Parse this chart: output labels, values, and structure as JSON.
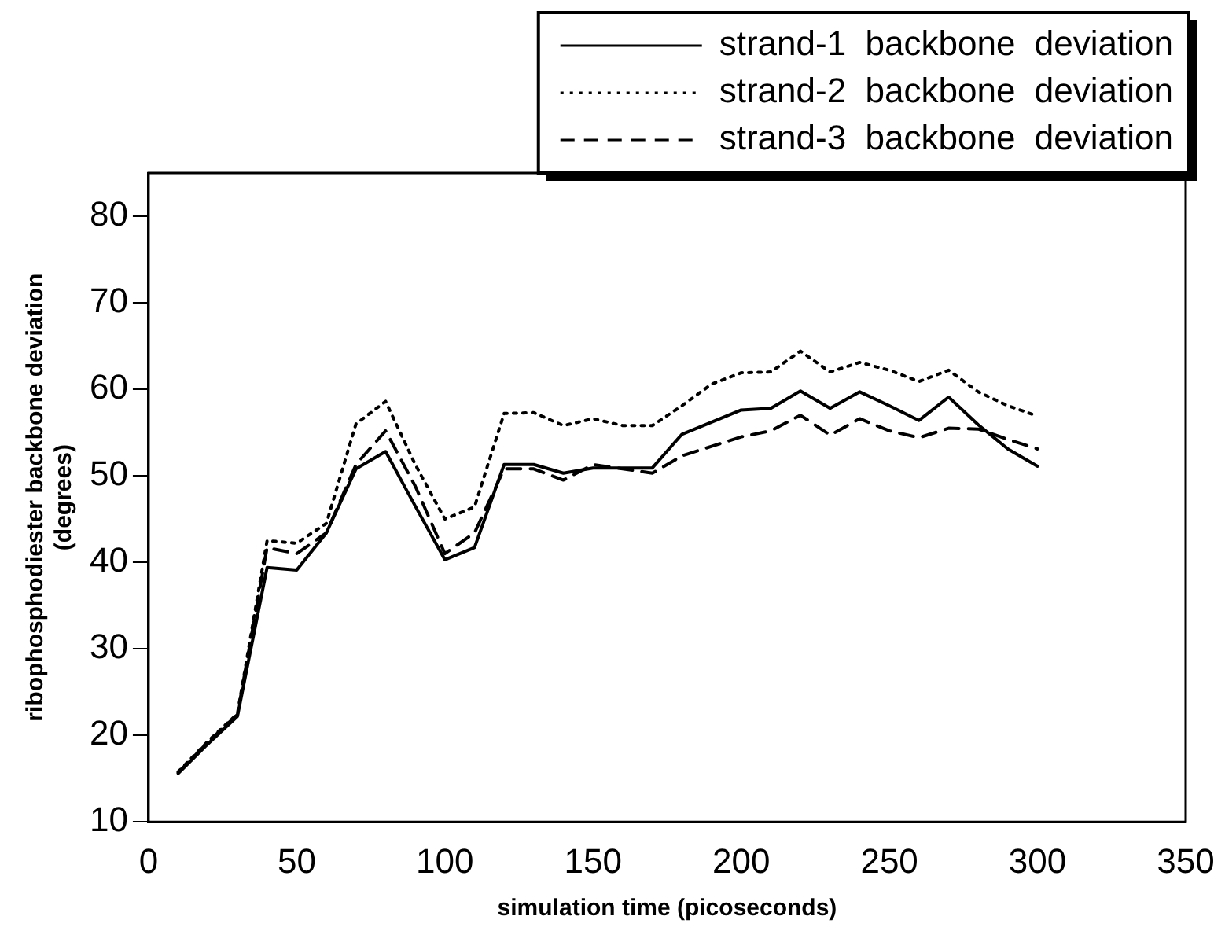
{
  "chart_data": {
    "type": "line",
    "xlabel": "simulation time (picoseconds)",
    "ylabel": "ribophosphodiester backbone deviation\n(degrees)",
    "x": [
      10,
      20,
      30,
      40,
      50,
      60,
      70,
      80,
      90,
      100,
      110,
      120,
      130,
      140,
      150,
      160,
      170,
      180,
      190,
      200,
      210,
      220,
      230,
      240,
      250,
      260,
      270,
      280,
      290,
      300
    ],
    "series": [
      {
        "name": "strand-1  backbone  deviation",
        "color": "#000000",
        "line_style": "solid",
        "values": [
          15.6,
          19,
          22.2,
          39.4,
          39.1,
          43.4,
          50.8,
          52.8,
          46.5,
          40.3,
          41.7,
          51.3,
          51.3,
          50.3,
          50.9,
          50.9,
          50.9,
          54.8,
          56.2,
          57.6,
          57.8,
          59.8,
          57.8,
          59.7,
          58.1,
          56.4,
          59.1,
          55.9,
          53.1,
          51.1
        ]
      },
      {
        "name": "strand-2  backbone  deviation",
        "color": "#000000",
        "line_style": "dotted",
        "values": [
          15.8,
          19.3,
          22.5,
          42.5,
          42.2,
          44.5,
          56,
          58.6,
          51.3,
          45,
          46.4,
          57.2,
          57.3,
          55.8,
          56.6,
          55.8,
          55.8,
          58.1,
          60.6,
          61.9,
          62,
          64.4,
          62,
          63.1,
          62.2,
          60.9,
          62.2,
          59.7,
          58.1,
          56.9
        ]
      },
      {
        "name": "strand-3  backbone  deviation",
        "color": "#000000",
        "line_style": "dashed",
        "values": [
          15.7,
          19.2,
          22.4,
          41.7,
          41,
          43.4,
          51.3,
          55.2,
          48.8,
          41,
          43.4,
          50.8,
          50.8,
          49.5,
          51.3,
          50.8,
          50.3,
          52.3,
          53.4,
          54.5,
          55.2,
          57,
          54.7,
          56.6,
          55.2,
          54.4,
          55.5,
          55.4,
          54.2,
          53.1
        ]
      }
    ],
    "xlim": [
      0,
      350
    ],
    "xticks": [
      0,
      50,
      100,
      150,
      200,
      250,
      300,
      350
    ],
    "ylim": [
      10,
      85
    ],
    "yticks": [
      10,
      20,
      30,
      40,
      50,
      60,
      70,
      80
    ],
    "grid": false,
    "legend": "top right",
    "marker": "none"
  }
}
